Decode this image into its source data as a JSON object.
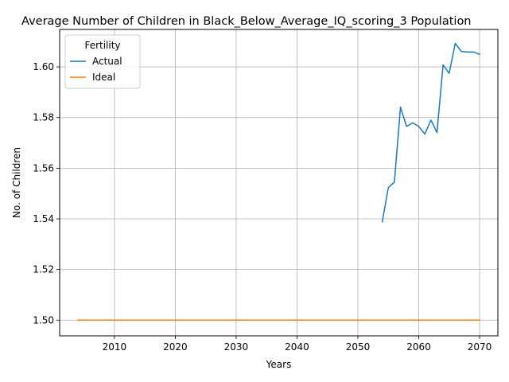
{
  "chart_data": {
    "type": "line",
    "title": "Average Number of Children in Black_Below_Average_IQ_scoring_3 Population",
    "xlabel": "Years",
    "ylabel": "No. of Children",
    "xlim": [
      2001,
      2073
    ],
    "ylim": [
      1.4938,
      1.6148
    ],
    "xticks": [
      2010,
      2020,
      2030,
      2040,
      2050,
      2060,
      2070
    ],
    "yticks": [
      1.5,
      1.52,
      1.54,
      1.56,
      1.58,
      1.6
    ],
    "ytick_labels": [
      "1.50",
      "1.52",
      "1.54",
      "1.56",
      "1.58",
      "1.60"
    ],
    "grid": true,
    "legend": {
      "title": "Fertility",
      "placement": "top-left"
    },
    "series": [
      {
        "name": "Actual",
        "color": "#1f77b4",
        "x": [
          2054,
          2055,
          2056,
          2057,
          2058,
          2059,
          2060,
          2061,
          2062,
          2063,
          2064,
          2065,
          2066,
          2067,
          2068,
          2069,
          2070
        ],
        "values": [
          1.5388,
          1.5523,
          1.5545,
          1.5841,
          1.5765,
          1.5779,
          1.5765,
          1.5735,
          1.579,
          1.5741,
          1.6008,
          1.5975,
          1.6093,
          1.6061,
          1.6059,
          1.6059,
          1.605
        ]
      },
      {
        "name": "Ideal",
        "color": "#ff7f0e",
        "x": [
          2004,
          2070
        ],
        "values": [
          1.5,
          1.5
        ]
      }
    ]
  }
}
